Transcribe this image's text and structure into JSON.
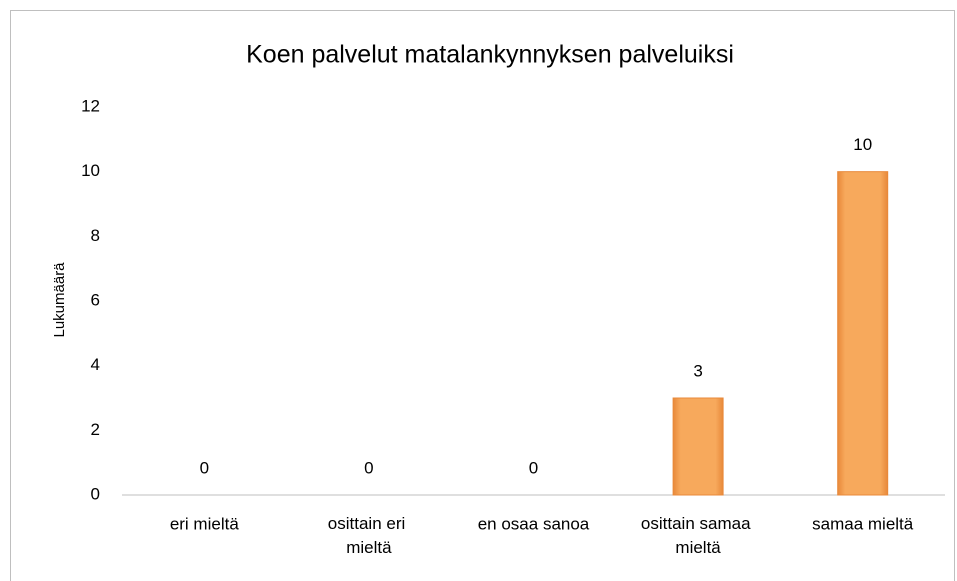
{
  "chart_data": {
    "type": "bar",
    "title": "Koen palvelut matalankynnyksen palveluiksi",
    "ylabel": "Lukumäärä",
    "categories": [
      "eri mieltä",
      "osittain eri mieltä",
      "en osaa sanoa",
      "osittain samaa mieltä",
      "samaa mieltä"
    ],
    "values": [
      0,
      0,
      0,
      3,
      10
    ],
    "color": "#f4a04c",
    "ylim": [
      0,
      12
    ],
    "yticks": [
      0,
      2,
      4,
      6,
      8,
      10,
      12
    ],
    "grid": false
  }
}
